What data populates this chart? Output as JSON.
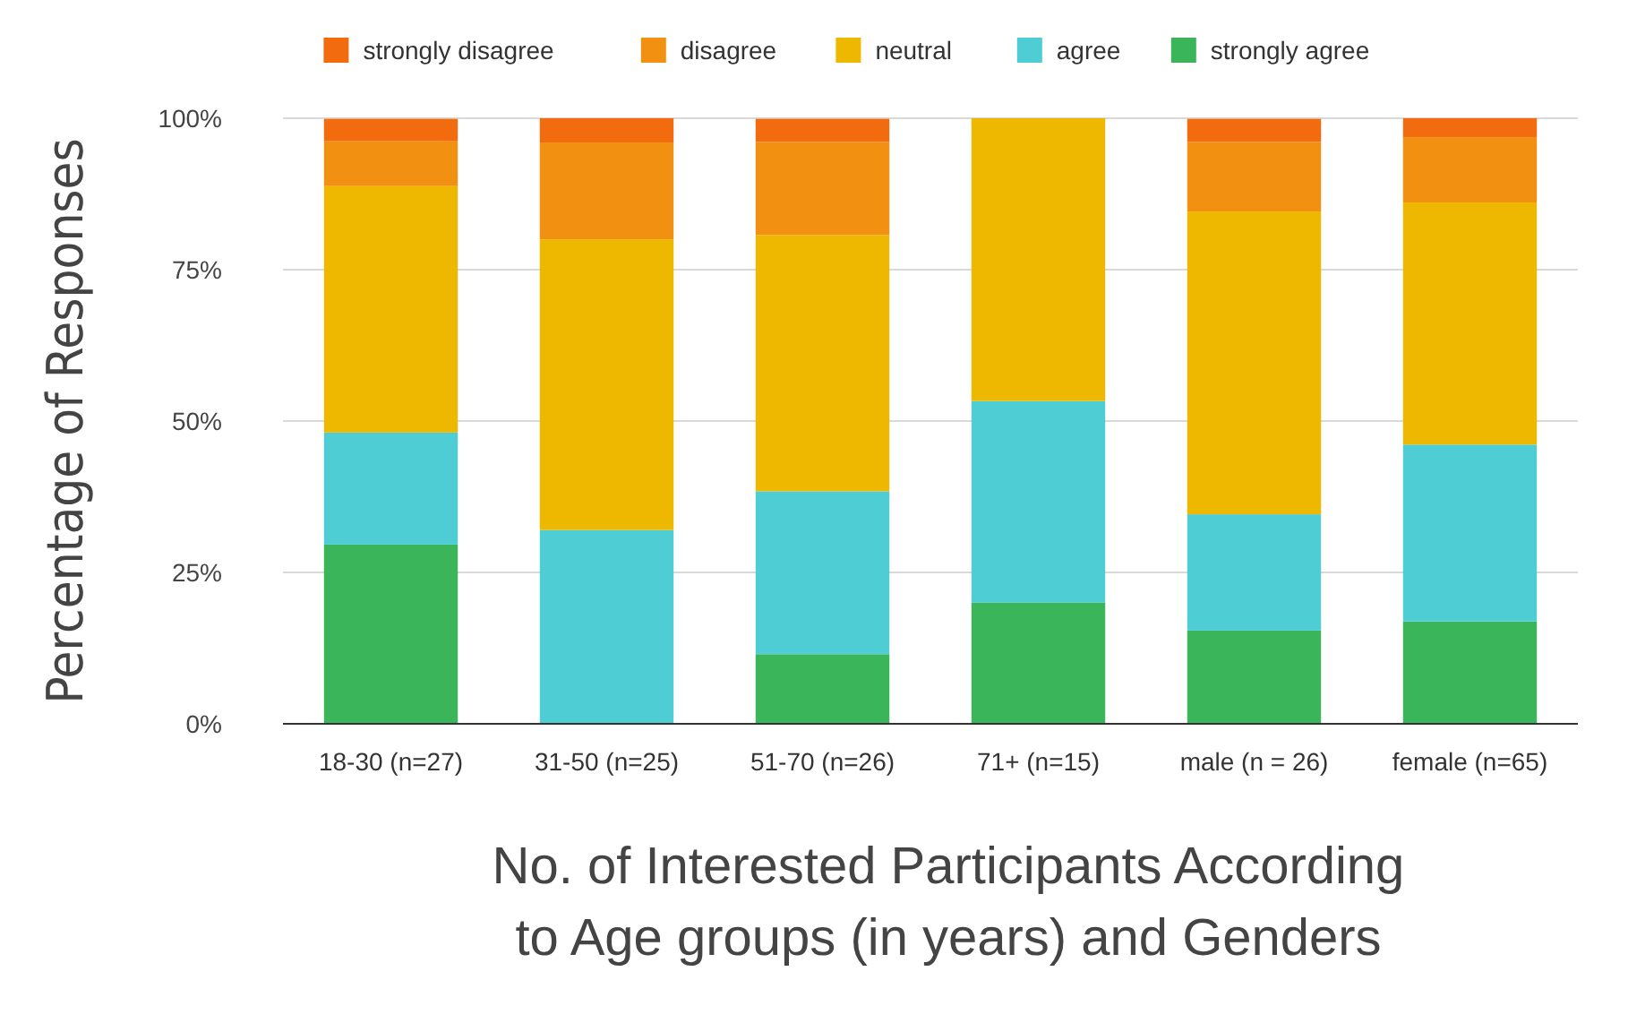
{
  "chart_data": {
    "type": "bar",
    "stacked": true,
    "ylabel": "Percentage of Responses",
    "xlabel": "No. of Interested Participants According to Age groups (in years) and Genders",
    "categories": [
      "18-30 (n=27)",
      "31-50 (n=25)",
      "51-70 (n=26)",
      "71+ (n=15)",
      "male (n = 26)",
      "female (n=65)"
    ],
    "series": [
      {
        "name": "strongly agree",
        "color": "#3bb55a",
        "values": [
          29.6,
          0,
          11.5,
          20,
          15.4,
          16.9
        ]
      },
      {
        "name": "agree",
        "color": "#4ecdd4",
        "values": [
          18.5,
          32,
          26.9,
          33.3,
          19.2,
          29.2
        ]
      },
      {
        "name": "neutral",
        "color": "#efb800",
        "values": [
          40.7,
          48,
          42.3,
          46.7,
          50,
          40
        ]
      },
      {
        "name": "disagree",
        "color": "#f29111",
        "values": [
          7.4,
          16,
          15.4,
          0,
          11.5,
          10.8
        ]
      },
      {
        "name": "strongly disagree",
        "color": "#f26b0f",
        "values": [
          3.7,
          4,
          3.8,
          0,
          3.8,
          3.1
        ]
      }
    ],
    "ylim": [
      0,
      100
    ],
    "yticks": [
      {
        "value": 0,
        "label": "0%"
      },
      {
        "value": 25,
        "label": "25%"
      },
      {
        "value": 50,
        "label": "50%"
      },
      {
        "value": 75,
        "label": "75%"
      },
      {
        "value": 100,
        "label": "100%"
      }
    ],
    "grid": "y",
    "legend": "top"
  }
}
